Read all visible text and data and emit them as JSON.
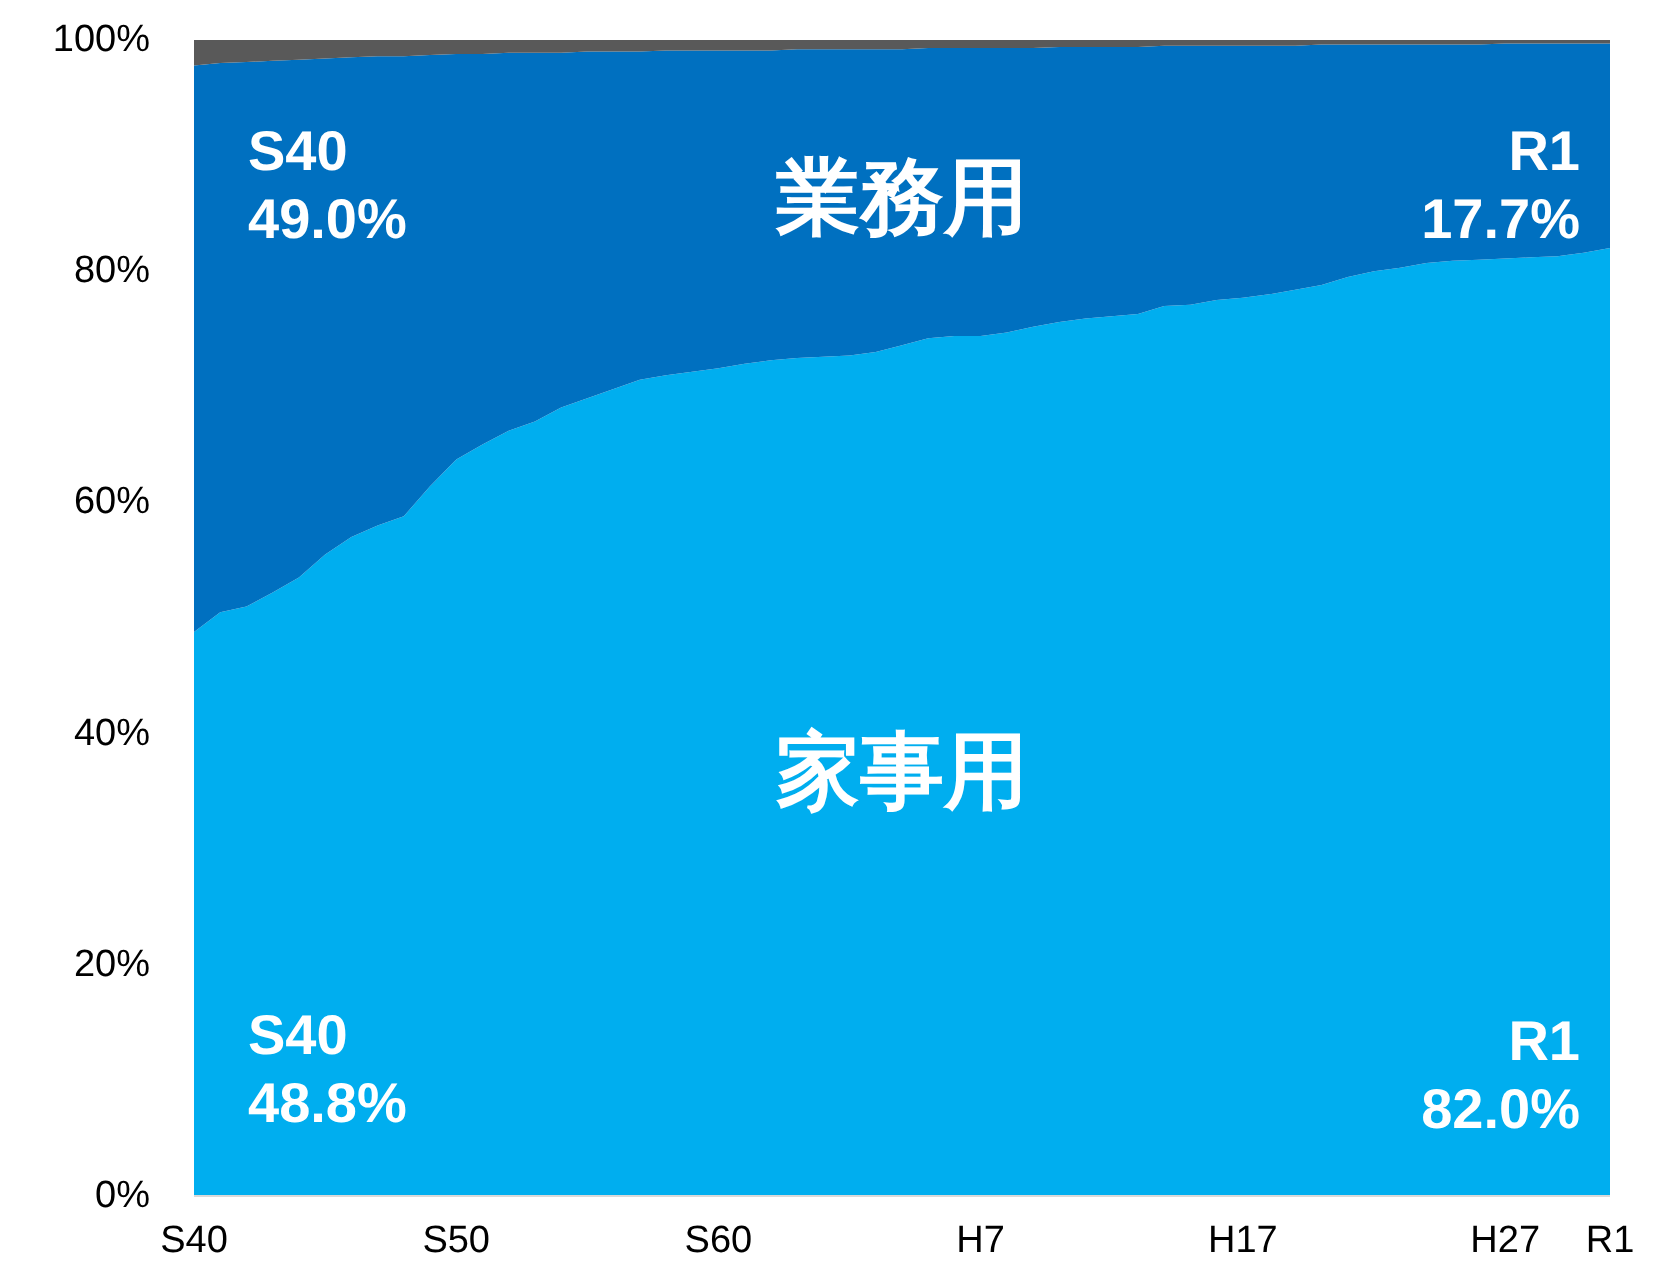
{
  "chart_data": {
    "type": "area",
    "stacked": true,
    "categories": [
      "S40",
      null,
      null,
      null,
      null,
      null,
      null,
      null,
      null,
      null,
      "S50",
      null,
      null,
      null,
      null,
      null,
      null,
      null,
      null,
      null,
      "S60",
      null,
      null,
      null,
      null,
      null,
      null,
      null,
      null,
      null,
      "H7",
      null,
      null,
      null,
      null,
      null,
      null,
      null,
      null,
      null,
      "H17",
      null,
      null,
      null,
      null,
      null,
      null,
      null,
      null,
      null,
      "H27",
      null,
      null,
      null,
      "R1"
    ],
    "series": [
      {
        "name": "家事用",
        "color": "#00aeef",
        "values": [
          48.8,
          50.5,
          51.0,
          52.2,
          53.5,
          55.5,
          57.0,
          58.0,
          58.8,
          61.4,
          63.7,
          65.0,
          66.2,
          67.0,
          68.2,
          69.0,
          69.8,
          70.6,
          71.0,
          71.3,
          71.6,
          72.0,
          72.3,
          72.5,
          72.6,
          72.7,
          73.0,
          73.6,
          74.2,
          74.4,
          74.4,
          74.7,
          75.2,
          75.6,
          75.9,
          76.1,
          76.3,
          77.0,
          77.1,
          77.5,
          77.7,
          78.0,
          78.4,
          78.8,
          79.5,
          80.0,
          80.3,
          80.7,
          80.9,
          81.0,
          81.1,
          81.2,
          81.3,
          81.6,
          82.0
        ]
      },
      {
        "name": "業務用",
        "color": "#0070c0",
        "values": [
          49.0,
          47.5,
          47.1,
          46.0,
          44.8,
          42.9,
          41.5,
          40.6,
          39.8,
          37.3,
          35.1,
          33.8,
          32.7,
          31.9,
          30.7,
          30.0,
          29.2,
          28.4,
          28.1,
          27.8,
          27.5,
          27.1,
          26.8,
          26.7,
          26.6,
          26.5,
          26.2,
          25.6,
          25.1,
          24.9,
          24.9,
          24.6,
          24.1,
          23.8,
          23.5,
          23.3,
          23.1,
          22.5,
          22.4,
          22.0,
          21.8,
          21.5,
          21.1,
          20.8,
          20.1,
          19.6,
          19.3,
          18.9,
          18.7,
          18.6,
          18.6,
          18.5,
          18.4,
          18.1,
          17.7
        ]
      },
      {
        "color": "#595959",
        "values": [
          2.2,
          2.0,
          1.9,
          1.8,
          1.7,
          1.6,
          1.5,
          1.4,
          1.4,
          1.3,
          1.2,
          1.2,
          1.1,
          1.1,
          1.1,
          1.0,
          1.0,
          1.0,
          0.9,
          0.9,
          0.9,
          0.9,
          0.9,
          0.8,
          0.8,
          0.8,
          0.8,
          0.8,
          0.7,
          0.7,
          0.7,
          0.7,
          0.7,
          0.6,
          0.6,
          0.6,
          0.6,
          0.5,
          0.5,
          0.5,
          0.5,
          0.5,
          0.5,
          0.4,
          0.4,
          0.4,
          0.4,
          0.4,
          0.4,
          0.4,
          0.3,
          0.3,
          0.3,
          0.3,
          0.3
        ]
      }
    ],
    "ylim": [
      0,
      100
    ],
    "yticks": [
      {
        "value": 0,
        "label": "0%"
      },
      {
        "value": 20,
        "label": "20%"
      },
      {
        "value": 40,
        "label": "40%"
      },
      {
        "value": 60,
        "label": "60%"
      },
      {
        "value": 80,
        "label": "80%"
      },
      {
        "value": 100,
        "label": "100%"
      }
    ],
    "annotations": [
      "S40 49.0%",
      "R1 17.7%",
      "S40 48.8%",
      "R1 82.0%"
    ]
  }
}
